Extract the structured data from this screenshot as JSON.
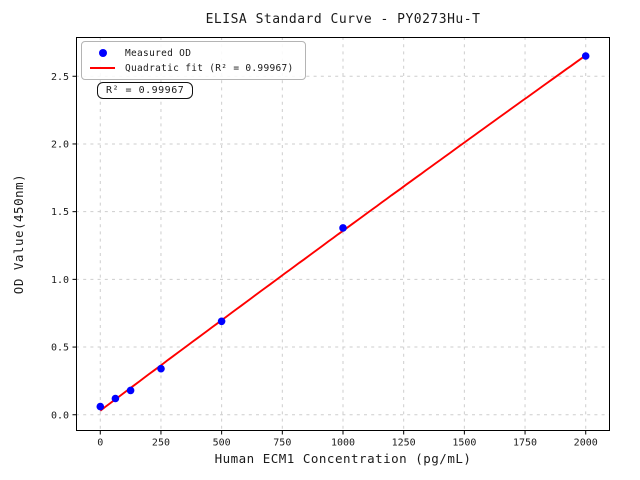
{
  "chart_data": {
    "type": "scatter",
    "title": "ELISA Standard Curve - PY0273Hu-T",
    "xlabel": "Human ECM1 Concentration (pg/mL)",
    "ylabel": "OD Value(450nm)",
    "xlim": [
      -100,
      2100
    ],
    "ylim": [
      -0.12,
      2.79
    ],
    "xticks": [
      0,
      250,
      500,
      750,
      1000,
      1250,
      1500,
      1750,
      2000
    ],
    "yticks": [
      0.0,
      0.5,
      1.0,
      1.5,
      2.0,
      2.5
    ],
    "grid": true,
    "grid_style": "dashed",
    "grid_color": "#cdcdcd",
    "legend_position": "upper left",
    "series": [
      {
        "name": "Measured OD",
        "type": "scatter",
        "color": "#0000ff",
        "x": [
          0,
          62.5,
          125,
          250,
          500,
          1000,
          2000
        ],
        "y": [
          0.06,
          0.12,
          0.18,
          0.34,
          0.69,
          1.38,
          2.65
        ]
      },
      {
        "name": "Quadratic fit (R² = 0.99967)",
        "type": "quadratic-fit",
        "color": "#ff0000",
        "fit_of_series": "Measured OD",
        "x_range": [
          0,
          2000
        ],
        "r_squared": 0.99967
      }
    ],
    "annotation": "R² = 0.99967",
    "axis_color": "#000000",
    "text_color": "#1a1a1a"
  }
}
